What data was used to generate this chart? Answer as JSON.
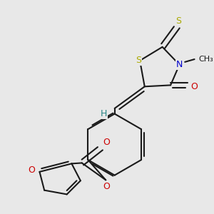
{
  "bg_color": "#e8e8e8",
  "bond_color": "#1a1a1a",
  "S_color": "#aaaa00",
  "N_color": "#0000cc",
  "O_color": "#cc0000",
  "H_color": "#2a8888",
  "line_width": 1.5,
  "figsize": [
    3.0,
    3.0
  ],
  "dpi": 100,
  "xlim": [
    0,
    300
  ],
  "ylim": [
    0,
    300
  ]
}
